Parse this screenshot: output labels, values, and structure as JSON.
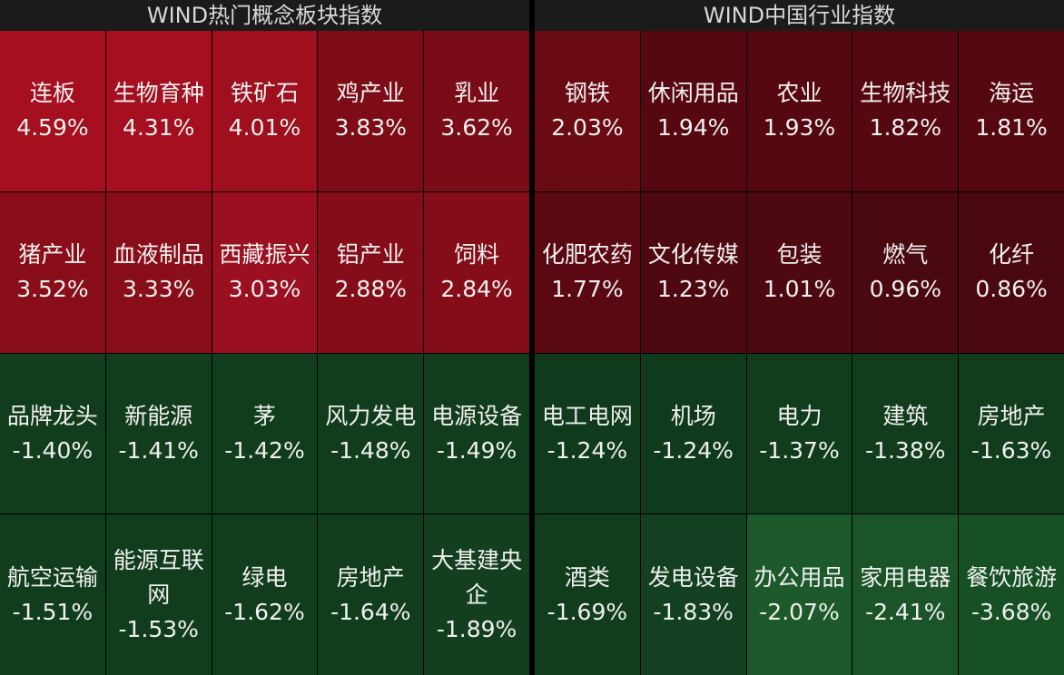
{
  "panels": [
    {
      "title": "WIND热门概念板块指数",
      "cells": [
        {
          "name": "连板",
          "change": "4.59%",
          "color": "#a50f1f"
        },
        {
          "name": "生物育种",
          "change": "4.31%",
          "color": "#a50f1f"
        },
        {
          "name": "铁矿石",
          "change": "4.01%",
          "color": "#a00f1e"
        },
        {
          "name": "鸡产业",
          "change": "3.83%",
          "color": "#7d0c17"
        },
        {
          "name": "乳业",
          "change": "3.62%",
          "color": "#7a0c17"
        },
        {
          "name": "猪产业",
          "change": "3.52%",
          "color": "#8a0e1a"
        },
        {
          "name": "血液制品",
          "change": "3.33%",
          "color": "#8a0e1a"
        },
        {
          "name": "西藏振兴",
          "change": "3.03%",
          "color": "#9a1020"
        },
        {
          "name": "铝产业",
          "change": "2.88%",
          "color": "#850d19"
        },
        {
          "name": "饲料",
          "change": "2.84%",
          "color": "#850d19"
        },
        {
          "name": "品牌龙头",
          "change": "-1.40%",
          "color": "#113d1d"
        },
        {
          "name": "新能源",
          "change": "-1.41%",
          "color": "#113d1d"
        },
        {
          "name": "茅",
          "change": "-1.42%",
          "color": "#113d1d"
        },
        {
          "name": "风力发电",
          "change": "-1.48%",
          "color": "#113d1d"
        },
        {
          "name": "电源设备",
          "change": "-1.49%",
          "color": "#113d1d"
        },
        {
          "name": "航空运输",
          "change": "-1.51%",
          "color": "#113d1d"
        },
        {
          "name": "能源互联网",
          "change": "-1.53%",
          "color": "#113d1d"
        },
        {
          "name": "绿电",
          "change": "-1.62%",
          "color": "#113d1d"
        },
        {
          "name": "房地产",
          "change": "-1.64%",
          "color": "#113d1d"
        },
        {
          "name": "大基建央企",
          "change": "-1.89%",
          "color": "#133f1f"
        }
      ]
    },
    {
      "title": "WIND中国行业指数",
      "cells": [
        {
          "name": "钢铁",
          "change": "2.03%",
          "color": "#6a0a13"
        },
        {
          "name": "休闲用品",
          "change": "1.94%",
          "color": "#560811"
        },
        {
          "name": "农业",
          "change": "1.93%",
          "color": "#560811"
        },
        {
          "name": "生物科技",
          "change": "1.82%",
          "color": "#560811"
        },
        {
          "name": "海运",
          "change": "1.81%",
          "color": "#560811"
        },
        {
          "name": "化肥农药",
          "change": "1.77%",
          "color": "#5a0912"
        },
        {
          "name": "文化传媒",
          "change": "1.23%",
          "color": "#4e0810"
        },
        {
          "name": "包装",
          "change": "1.01%",
          "color": "#4e0810"
        },
        {
          "name": "燃气",
          "change": "0.96%",
          "color": "#4a0810"
        },
        {
          "name": "化纤",
          "change": "0.86%",
          "color": "#4a0810"
        },
        {
          "name": "电工电网",
          "change": "-1.24%",
          "color": "#0f3a1b"
        },
        {
          "name": "机场",
          "change": "-1.24%",
          "color": "#0f3a1b"
        },
        {
          "name": "电力",
          "change": "-1.37%",
          "color": "#113d1d"
        },
        {
          "name": "建筑",
          "change": "-1.38%",
          "color": "#113d1d"
        },
        {
          "name": "房地产",
          "change": "-1.63%",
          "color": "#113d1d"
        },
        {
          "name": "酒类",
          "change": "-1.69%",
          "color": "#113d1d"
        },
        {
          "name": "发电设备",
          "change": "-1.83%",
          "color": "#124020"
        },
        {
          "name": "办公用品",
          "change": "-2.07%",
          "color": "#1d5a2b"
        },
        {
          "name": "家用电器",
          "change": "-2.41%",
          "color": "#1b5428"
        },
        {
          "name": "餐饮旅游",
          "change": "-3.68%",
          "color": "#175024"
        }
      ]
    }
  ]
}
